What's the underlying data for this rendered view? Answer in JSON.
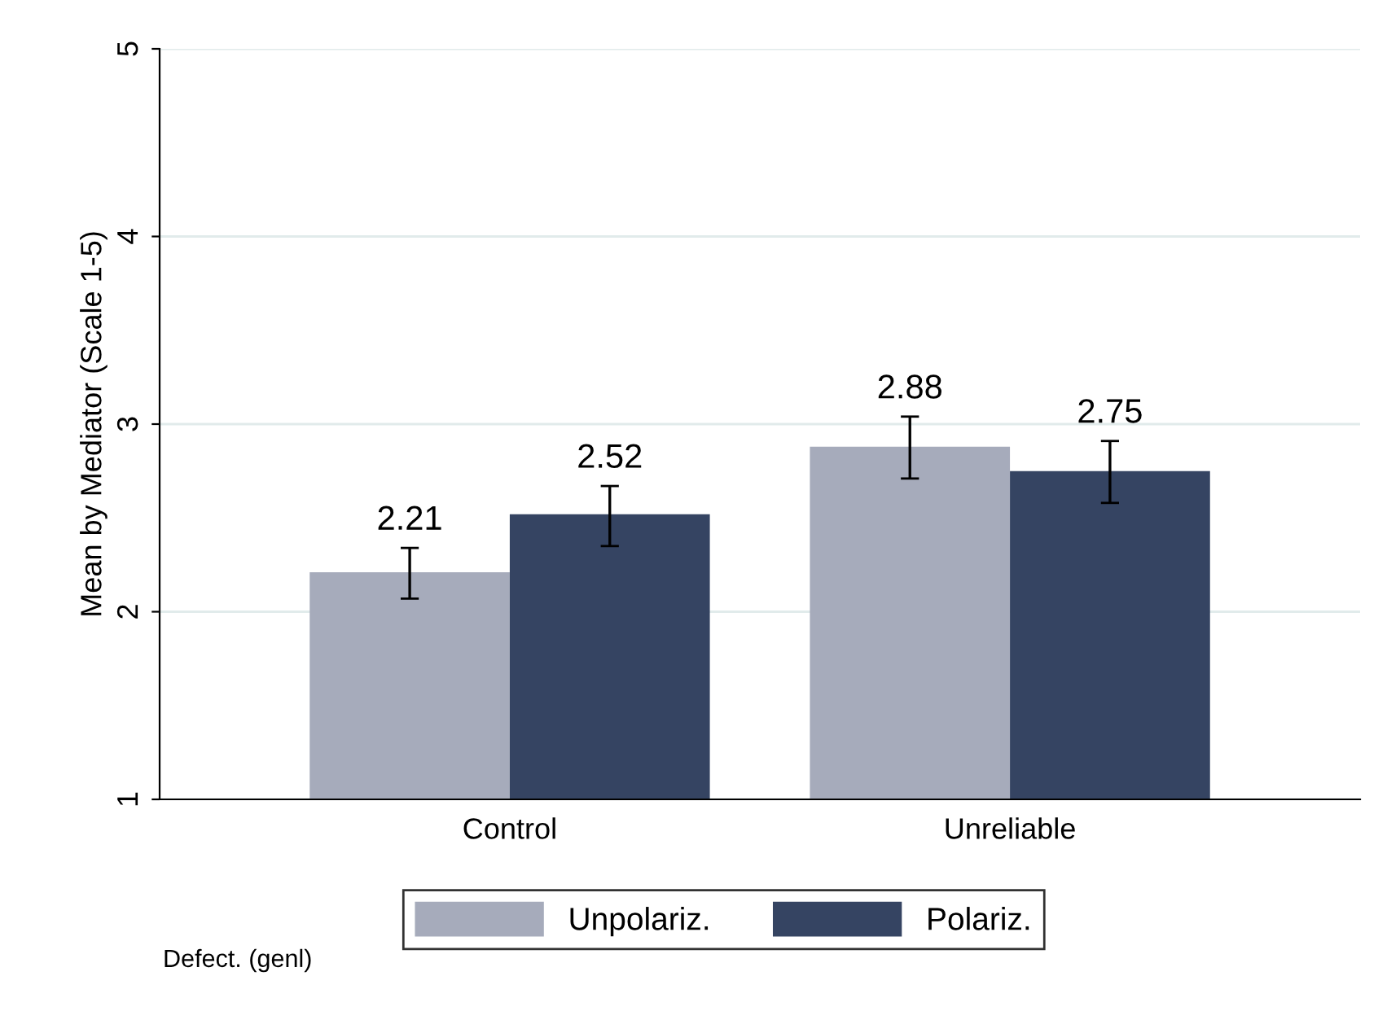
{
  "chart_data": {
    "type": "bar",
    "ylabel": "Mean by Mediator (Scale 1-5)",
    "categories": [
      "Control",
      "Unreliable"
    ],
    "series": [
      {
        "name": "Unpolariz.",
        "color": "#a6abbb",
        "values": [
          2.21,
          2.88
        ],
        "errors": [
          [
            2.07,
            2.34
          ],
          [
            2.71,
            3.04
          ]
        ]
      },
      {
        "name": "Polariz.",
        "color": "#354462",
        "values": [
          2.52,
          2.75
        ],
        "errors": [
          [
            2.35,
            2.67
          ],
          [
            2.58,
            2.91
          ]
        ]
      }
    ],
    "ylim": [
      1,
      5
    ],
    "yticks": [
      1,
      2,
      3,
      4,
      5
    ],
    "grid": "y",
    "legend": "bottom",
    "data_labels": true,
    "annotations": [
      "Defect. (genl)"
    ]
  }
}
